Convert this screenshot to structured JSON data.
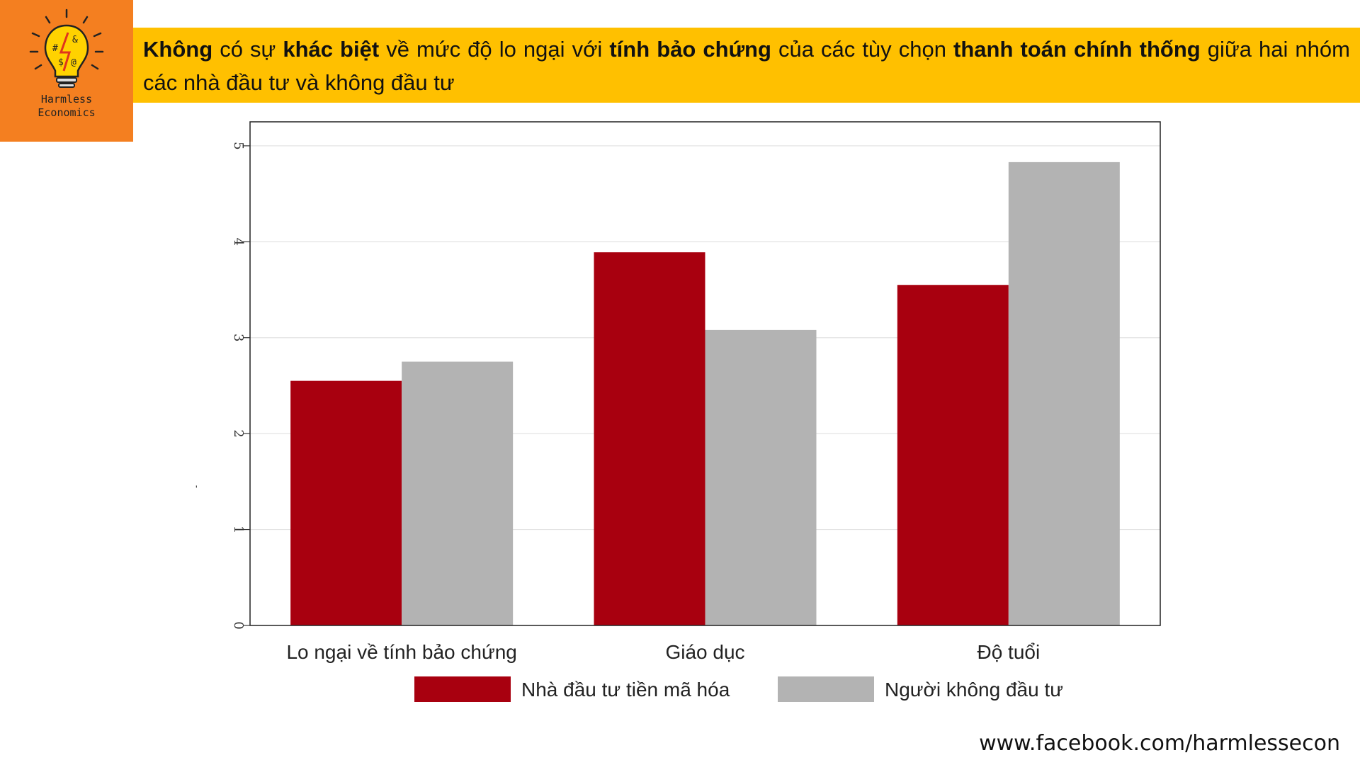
{
  "logo": {
    "line1": "Harmless",
    "line2": "Economics",
    "icon": "lightbulb-icon",
    "glyphs": [
      "#",
      "$",
      "@",
      "&"
    ]
  },
  "title": {
    "segments": [
      {
        "text": "Không",
        "bold": true
      },
      {
        "text": " có sự ",
        "bold": false
      },
      {
        "text": "khác biệt",
        "bold": true
      },
      {
        "text": " về mức độ lo ngại với ",
        "bold": false
      },
      {
        "text": "tính bảo chứng",
        "bold": true
      },
      {
        "text": " của các tùy chọn ",
        "bold": false
      },
      {
        "text": "thanh toán chính thống",
        "bold": true
      },
      {
        "text": " giữa hai nhóm các nhà đầu tư và không đầu tư",
        "bold": false
      }
    ]
  },
  "chart_data": {
    "type": "bar",
    "categories": [
      "Lo ngại về tính bảo chứng",
      "Giáo dục",
      "Độ tuổi"
    ],
    "series": [
      {
        "name": "Nhà đầu tư tiền mã hóa",
        "values": [
          2.55,
          3.89,
          3.55
        ],
        "color": "#a8000f"
      },
      {
        "name": "Người không đầu tư",
        "values": [
          2.75,
          3.08,
          4.83
        ],
        "color": "#b3b3b3"
      }
    ],
    "ylim": [
      0,
      5.25
    ],
    "yticks": [
      "0",
      "1",
      "2",
      "3",
      "4",
      "5"
    ],
    "grid": true,
    "legend": "bottom",
    "xlabel": "",
    "ylabel": "'"
  },
  "footer": {
    "url": "www.facebook.com/harmlessecon"
  },
  "colors": {
    "logo_bg": "#f47f20",
    "title_bg": "#ffc000",
    "investor": "#a8000f",
    "non_investor": "#b3b3b3"
  }
}
